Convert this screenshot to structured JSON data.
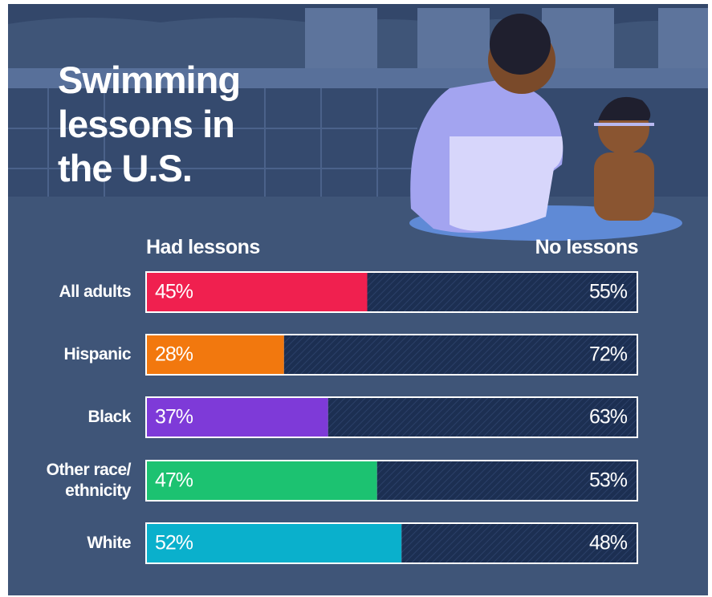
{
  "chart_data": {
    "type": "stacked-bar-horizontal",
    "title": "Swimming lessons in the U.S.",
    "categories": [
      "All adults",
      "Hispanic",
      "Black",
      "Other race/ ethnicity",
      "White"
    ],
    "xlim": [
      0,
      100
    ],
    "series": [
      {
        "name": "Had lessons",
        "colors": [
          "#f0204f",
          "#f2780e",
          "#7e3ad8",
          "#1cc271",
          "#0ab0cc"
        ],
        "values": [
          45,
          28,
          37,
          47,
          52
        ],
        "value_labels": [
          "45%",
          "28%",
          "37%",
          "47%",
          "52%"
        ]
      },
      {
        "name": "No lessons",
        "color": "#1c2f52",
        "values": [
          55,
          72,
          63,
          53,
          48
        ],
        "value_labels": [
          "55%",
          "72%",
          "63%",
          "53%",
          "48%"
        ]
      }
    ]
  }
}
